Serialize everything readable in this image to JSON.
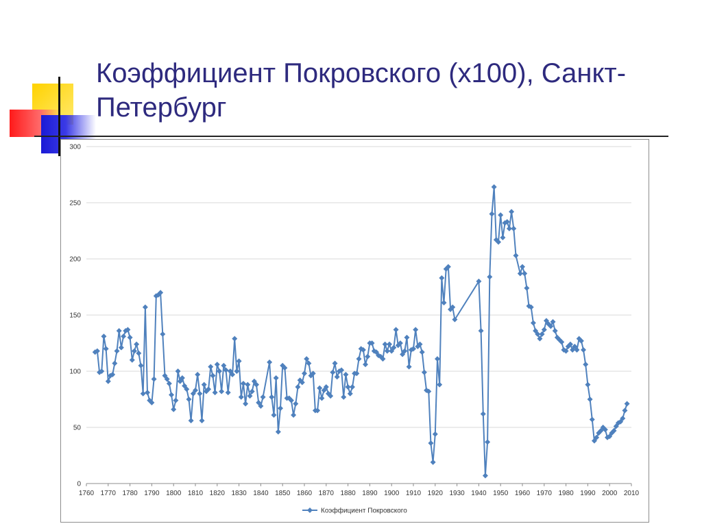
{
  "slide": {
    "title": "Коэффициент Покровского (x100), Санкт-Петербург"
  },
  "colors": {
    "title": "#2e2a7e",
    "series": "#4f81bd",
    "grid": "#d9d9d9"
  },
  "chart_data": {
    "type": "line",
    "title": "",
    "xlabel": "",
    "ylabel": "",
    "xlim": [
      1760,
      2010
    ],
    "ylim": [
      0,
      300
    ],
    "x_ticks": [
      "1760",
      "1770",
      "1780",
      "1790",
      "1800",
      "1810",
      "1820",
      "1830",
      "1840",
      "1850",
      "1860",
      "1870",
      "1880",
      "1890",
      "1900",
      "1910",
      "1920",
      "1930",
      "1940",
      "1950",
      "1960",
      "1970",
      "1980",
      "1990",
      "2000",
      "2010"
    ],
    "y_ticks": [
      "0",
      "50",
      "100",
      "150",
      "200",
      "250",
      "300"
    ],
    "grid": true,
    "legend_position": "bottom",
    "series": [
      {
        "name": "Коэффициент Покровского",
        "marker": "diamond",
        "points": [
          [
            1764,
            117
          ],
          [
            1765,
            118
          ],
          [
            1766,
            99
          ],
          [
            1767,
            100
          ],
          [
            1768,
            131
          ],
          [
            1769,
            120
          ],
          [
            1770,
            91
          ],
          [
            1771,
            96
          ],
          [
            1772,
            97
          ],
          [
            1773,
            107
          ],
          [
            1774,
            118
          ],
          [
            1775,
            136
          ],
          [
            1776,
            121
          ],
          [
            1777,
            131
          ],
          [
            1778,
            136
          ],
          [
            1779,
            137
          ],
          [
            1780,
            130
          ],
          [
            1781,
            110
          ],
          [
            1782,
            118
          ],
          [
            1783,
            124
          ],
          [
            1784,
            116
          ],
          [
            1785,
            105
          ],
          [
            1786,
            80
          ],
          [
            1787,
            157
          ],
          [
            1788,
            81
          ],
          [
            1789,
            74
          ],
          [
            1790,
            72
          ],
          [
            1791,
            93
          ],
          [
            1792,
            167
          ],
          [
            1793,
            168
          ],
          [
            1794,
            170
          ],
          [
            1795,
            133
          ],
          [
            1796,
            96
          ],
          [
            1797,
            93
          ],
          [
            1798,
            89
          ],
          [
            1799,
            79
          ],
          [
            1800,
            66
          ],
          [
            1801,
            74
          ],
          [
            1802,
            100
          ],
          [
            1803,
            91
          ],
          [
            1804,
            94
          ],
          [
            1805,
            87
          ],
          [
            1806,
            84
          ],
          [
            1807,
            75
          ],
          [
            1808,
            56
          ],
          [
            1809,
            80
          ],
          [
            1810,
            83
          ],
          [
            1811,
            97
          ],
          [
            1812,
            80
          ],
          [
            1813,
            56
          ],
          [
            1814,
            88
          ],
          [
            1815,
            82
          ],
          [
            1816,
            84
          ],
          [
            1817,
            104
          ],
          [
            1818,
            96
          ],
          [
            1819,
            81
          ],
          [
            1820,
            106
          ],
          [
            1821,
            100
          ],
          [
            1822,
            82
          ],
          [
            1823,
            105
          ],
          [
            1824,
            101
          ],
          [
            1825,
            81
          ],
          [
            1826,
            100
          ],
          [
            1827,
            97
          ],
          [
            1828,
            129
          ],
          [
            1829,
            100
          ],
          [
            1830,
            109
          ],
          [
            1831,
            77
          ],
          [
            1832,
            89
          ],
          [
            1833,
            71
          ],
          [
            1834,
            88
          ],
          [
            1835,
            78
          ],
          [
            1836,
            82
          ],
          [
            1837,
            91
          ],
          [
            1838,
            88
          ],
          [
            1839,
            72
          ],
          [
            1840,
            69
          ],
          [
            1841,
            77
          ],
          [
            1844,
            108
          ],
          [
            1845,
            77
          ],
          [
            1846,
            61
          ],
          [
            1847,
            94
          ],
          [
            1848,
            46
          ],
          [
            1849,
            67
          ],
          [
            1850,
            105
          ],
          [
            1851,
            103
          ],
          [
            1852,
            76
          ],
          [
            1853,
            76
          ],
          [
            1854,
            74
          ],
          [
            1855,
            61
          ],
          [
            1856,
            71
          ],
          [
            1857,
            86
          ],
          [
            1858,
            92
          ],
          [
            1859,
            90
          ],
          [
            1860,
            98
          ],
          [
            1861,
            111
          ],
          [
            1862,
            107
          ],
          [
            1863,
            96
          ],
          [
            1864,
            98
          ],
          [
            1865,
            65
          ],
          [
            1866,
            65
          ],
          [
            1867,
            85
          ],
          [
            1868,
            76
          ],
          [
            1869,
            83
          ],
          [
            1870,
            86
          ],
          [
            1871,
            80
          ],
          [
            1872,
            78
          ],
          [
            1873,
            99
          ],
          [
            1874,
            107
          ],
          [
            1875,
            95
          ],
          [
            1876,
            100
          ],
          [
            1877,
            101
          ],
          [
            1878,
            77
          ],
          [
            1879,
            97
          ],
          [
            1880,
            86
          ],
          [
            1881,
            80
          ],
          [
            1882,
            86
          ],
          [
            1883,
            98
          ],
          [
            1884,
            98
          ],
          [
            1885,
            111
          ],
          [
            1886,
            120
          ],
          [
            1887,
            119
          ],
          [
            1888,
            106
          ],
          [
            1889,
            113
          ],
          [
            1890,
            125
          ],
          [
            1891,
            125
          ],
          [
            1892,
            118
          ],
          [
            1893,
            117
          ],
          [
            1894,
            114
          ],
          [
            1895,
            113
          ],
          [
            1896,
            111
          ],
          [
            1897,
            124
          ],
          [
            1898,
            118
          ],
          [
            1899,
            124
          ],
          [
            1900,
            118
          ],
          [
            1901,
            121
          ],
          [
            1902,
            137
          ],
          [
            1903,
            123
          ],
          [
            1904,
            125
          ],
          [
            1905,
            115
          ],
          [
            1906,
            118
          ],
          [
            1907,
            130
          ],
          [
            1908,
            104
          ],
          [
            1909,
            119
          ],
          [
            1910,
            120
          ],
          [
            1911,
            137
          ],
          [
            1912,
            122
          ],
          [
            1913,
            124
          ],
          [
            1914,
            117
          ],
          [
            1915,
            99
          ],
          [
            1916,
            83
          ],
          [
            1917,
            82
          ],
          [
            1918,
            36
          ],
          [
            1919,
            19
          ],
          [
            1920,
            44
          ],
          [
            1921,
            111
          ],
          [
            1922,
            88
          ],
          [
            1923,
            183
          ],
          [
            1924,
            161
          ],
          [
            1925,
            191
          ],
          [
            1926,
            193
          ],
          [
            1927,
            155
          ],
          [
            1928,
            157
          ],
          [
            1929,
            146
          ],
          [
            1940,
            180
          ],
          [
            1941,
            136
          ],
          [
            1942,
            62
          ],
          [
            1943,
            7
          ],
          [
            1944,
            37
          ],
          [
            1945,
            184
          ],
          [
            1946,
            240
          ],
          [
            1947,
            264
          ],
          [
            1948,
            217
          ],
          [
            1949,
            215
          ],
          [
            1950,
            239
          ],
          [
            1951,
            219
          ],
          [
            1952,
            232
          ],
          [
            1953,
            233
          ],
          [
            1954,
            227
          ],
          [
            1955,
            242
          ],
          [
            1956,
            227
          ],
          [
            1957,
            203
          ],
          [
            1959,
            187
          ],
          [
            1960,
            193
          ],
          [
            1961,
            187
          ],
          [
            1962,
            174
          ],
          [
            1963,
            158
          ],
          [
            1964,
            157
          ],
          [
            1965,
            143
          ],
          [
            1966,
            136
          ],
          [
            1967,
            133
          ],
          [
            1968,
            129
          ],
          [
            1969,
            133
          ],
          [
            1970,
            137
          ],
          [
            1971,
            145
          ],
          [
            1972,
            142
          ],
          [
            1973,
            140
          ],
          [
            1974,
            144
          ],
          [
            1975,
            136
          ],
          [
            1976,
            130
          ],
          [
            1977,
            128
          ],
          [
            1978,
            126
          ],
          [
            1979,
            119
          ],
          [
            1980,
            118
          ],
          [
            1981,
            122
          ],
          [
            1982,
            124
          ],
          [
            1983,
            119
          ],
          [
            1984,
            122
          ],
          [
            1985,
            119
          ],
          [
            1986,
            129
          ],
          [
            1987,
            127
          ],
          [
            1988,
            119
          ],
          [
            1989,
            106
          ],
          [
            1990,
            88
          ],
          [
            1991,
            75
          ],
          [
            1992,
            57
          ],
          [
            1993,
            38
          ],
          [
            1994,
            41
          ],
          [
            1995,
            45
          ],
          [
            1996,
            47
          ],
          [
            1997,
            50
          ],
          [
            1998,
            48
          ],
          [
            1999,
            41
          ],
          [
            2000,
            42
          ],
          [
            2001,
            45
          ],
          [
            2002,
            47
          ],
          [
            2003,
            51
          ],
          [
            2004,
            54
          ],
          [
            2005,
            55
          ],
          [
            2006,
            58
          ],
          [
            2007,
            65
          ],
          [
            2008,
            71
          ]
        ]
      }
    ]
  }
}
